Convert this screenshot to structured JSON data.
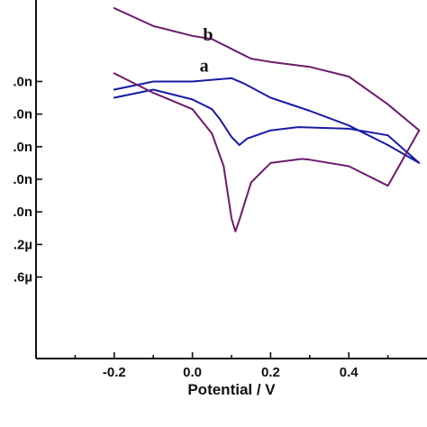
{
  "chart_data": {
    "type": "line",
    "xlabel": "Potential / V",
    "ylabel": "",
    "xlim": [
      -0.4,
      0.6
    ],
    "ylim": [
      -1.7,
      0.5
    ],
    "x_ticks": [
      {
        "value": -0.2,
        "label": "-0.2"
      },
      {
        "value": 0.0,
        "label": "0.0"
      },
      {
        "value": 0.2,
        "label": "0.2"
      },
      {
        "value": 0.4,
        "label": "0.4"
      }
    ],
    "y_ticks": [
      {
        "value": 0.0,
        "label": ".0n"
      },
      {
        "value": -0.2,
        "label": ".0n"
      },
      {
        "value": -0.4,
        "label": ".0n"
      },
      {
        "value": -0.6,
        "label": ".0n"
      },
      {
        "value": -0.8,
        "label": ".0n"
      },
      {
        "value": -1.0,
        "label": ".2µ"
      },
      {
        "value": -1.2,
        "label": ".6µ"
      }
    ],
    "series": [
      {
        "name": "a",
        "color": "#1a1aa6",
        "x": [
          -0.2,
          -0.1,
          0.0,
          0.05,
          0.1,
          0.13,
          0.2,
          0.3,
          0.4,
          0.5,
          0.58,
          0.5,
          0.4,
          0.3,
          0.27,
          0.2,
          0.14,
          0.12,
          0.1,
          0.07,
          0.05,
          0.0,
          -0.1,
          -0.2
        ],
        "y": [
          -0.05,
          0.0,
          0.0,
          0.01,
          0.02,
          -0.01,
          -0.1,
          -0.18,
          -0.27,
          -0.39,
          -0.5,
          -0.33,
          -0.29,
          -0.282,
          -0.28,
          -0.3,
          -0.35,
          -0.39,
          -0.34,
          -0.23,
          -0.17,
          -0.11,
          -0.05,
          -0.1
        ]
      },
      {
        "name": "b",
        "color": "#6e1a6e",
        "x": [
          -0.2,
          -0.1,
          0.0,
          0.05,
          0.1,
          0.15,
          0.2,
          0.3,
          0.4,
          0.5,
          0.58,
          0.5,
          0.4,
          0.3,
          0.28,
          0.2,
          0.15,
          0.12,
          0.11,
          0.1,
          0.08,
          0.05,
          0.0,
          -0.1,
          -0.2
        ],
        "y": [
          0.45,
          0.34,
          0.28,
          0.26,
          0.2,
          0.14,
          0.12,
          0.09,
          0.03,
          -0.14,
          -0.3,
          -0.64,
          -0.52,
          -0.48,
          -0.475,
          -0.5,
          -0.62,
          -0.85,
          -0.92,
          -0.84,
          -0.52,
          -0.32,
          -0.17,
          -0.07,
          0.05
        ]
      }
    ],
    "annotations": [
      {
        "text": "b",
        "x": 0.04,
        "y": 0.25
      },
      {
        "text": "a",
        "x": 0.03,
        "y": 0.06
      }
    ]
  }
}
